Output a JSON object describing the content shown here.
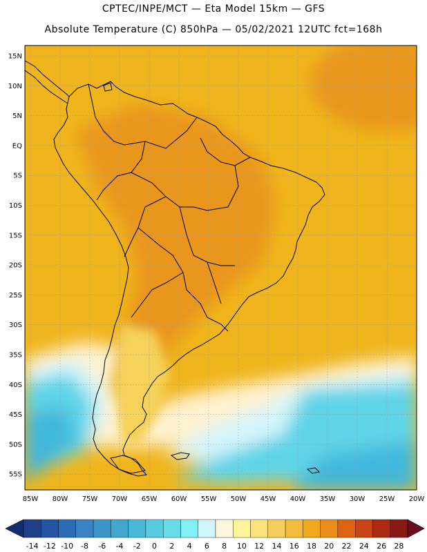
{
  "header": {
    "line1": "CPTEC/INPE/MCT —  Eta Model 15km — GFS",
    "line2": "Absolute Temperature (C) 850hPa — 05/02/2021 12UTC fct=168h"
  },
  "map": {
    "lat_labels": [
      "15N",
      "10N",
      "5N",
      "EQ",
      "5S",
      "10S",
      "15S",
      "20S",
      "25S",
      "30S",
      "35S",
      "40S",
      "45S",
      "50S",
      "55S"
    ],
    "lon_labels": [
      "85W",
      "80W",
      "75W",
      "70W",
      "65W",
      "60W",
      "55W",
      "50W",
      "45W",
      "40W",
      "35W",
      "30W",
      "25W",
      "20W"
    ],
    "fields": {
      "ocean_base": "#f0b51c",
      "continent_warm": "#e9961f",
      "north_atlantic_warm": "#e9961f",
      "south_cool": "#5fd4e8",
      "south_coldest": "#3fb8dc",
      "transition_pale": "#fff2cf",
      "transition_light": "#d5f5fb",
      "patagonia": "#f5d25a"
    },
    "coast_color": "#000000",
    "grid_color": "#9a9a9a"
  },
  "colorbar": {
    "labels": [
      "-14",
      "-12",
      "-10",
      "-8",
      "-6",
      "-4",
      "-2",
      "0",
      "2",
      "4",
      "6",
      "8",
      "10",
      "12",
      "14",
      "16",
      "18",
      "20",
      "22",
      "24",
      "26",
      "28"
    ],
    "low_color": "#162c70",
    "high_color": "#6a0b1e",
    "colors": [
      "#1f3f88",
      "#2553a3",
      "#2b6bb6",
      "#3a82c2",
      "#3b94c8",
      "#42a6cd",
      "#48b8d6",
      "#56cbe0",
      "#66dde9",
      "#7ff0f4",
      "#d3f5fc",
      "#fff6de",
      "#fff49a",
      "#fbe27c",
      "#f6ce5b",
      "#f2bb3c",
      "#f0a91c",
      "#e98e1a",
      "#dd6212",
      "#c84513",
      "#aa2a13",
      "#8a1a14"
    ]
  }
}
